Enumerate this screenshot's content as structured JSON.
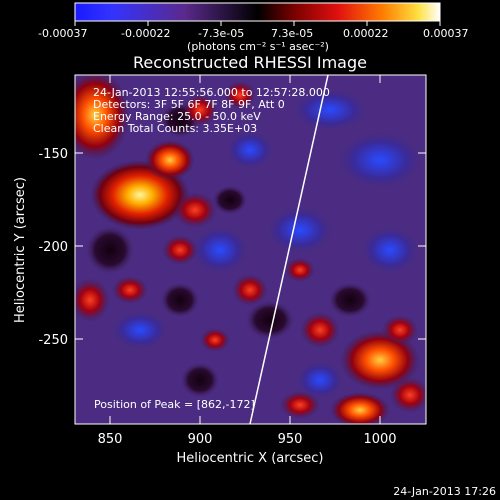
{
  "colorbar": {
    "tick_labels": [
      "-0.00037",
      "-0.00022",
      "-7.3e-05",
      "7.3e-05",
      "0.00022",
      "0.00037"
    ],
    "units_label": "(photons cm⁻² s⁻¹ asec⁻²)"
  },
  "plot": {
    "title": "Reconstructed RHESSI Image",
    "info_lines": [
      "24-Jan-2013 12:55:56.000 to 12:57:28.000",
      "Detectors: 3F 5F 6F 7F 8F 9F, Att 0",
      "Energy Range: 25.0 - 50.0 keV",
      "Clean    Total Counts: 3.35E+03"
    ],
    "peak_label": "Position of Peak = [862,-172]",
    "x_axis_label": "Heliocentric X (arcsec)",
    "y_axis_label": "Heliocentric Y (arcsec)",
    "x_ticks": [
      "850",
      "900",
      "950",
      "1000"
    ],
    "y_ticks": [
      "-150",
      "-200",
      "-250"
    ]
  },
  "footer": {
    "timestamp": "24-Jan-2013 17:26"
  },
  "colors": {
    "background": "#000000",
    "axes": "#ffffff",
    "limb_line": "#ffffff"
  }
}
